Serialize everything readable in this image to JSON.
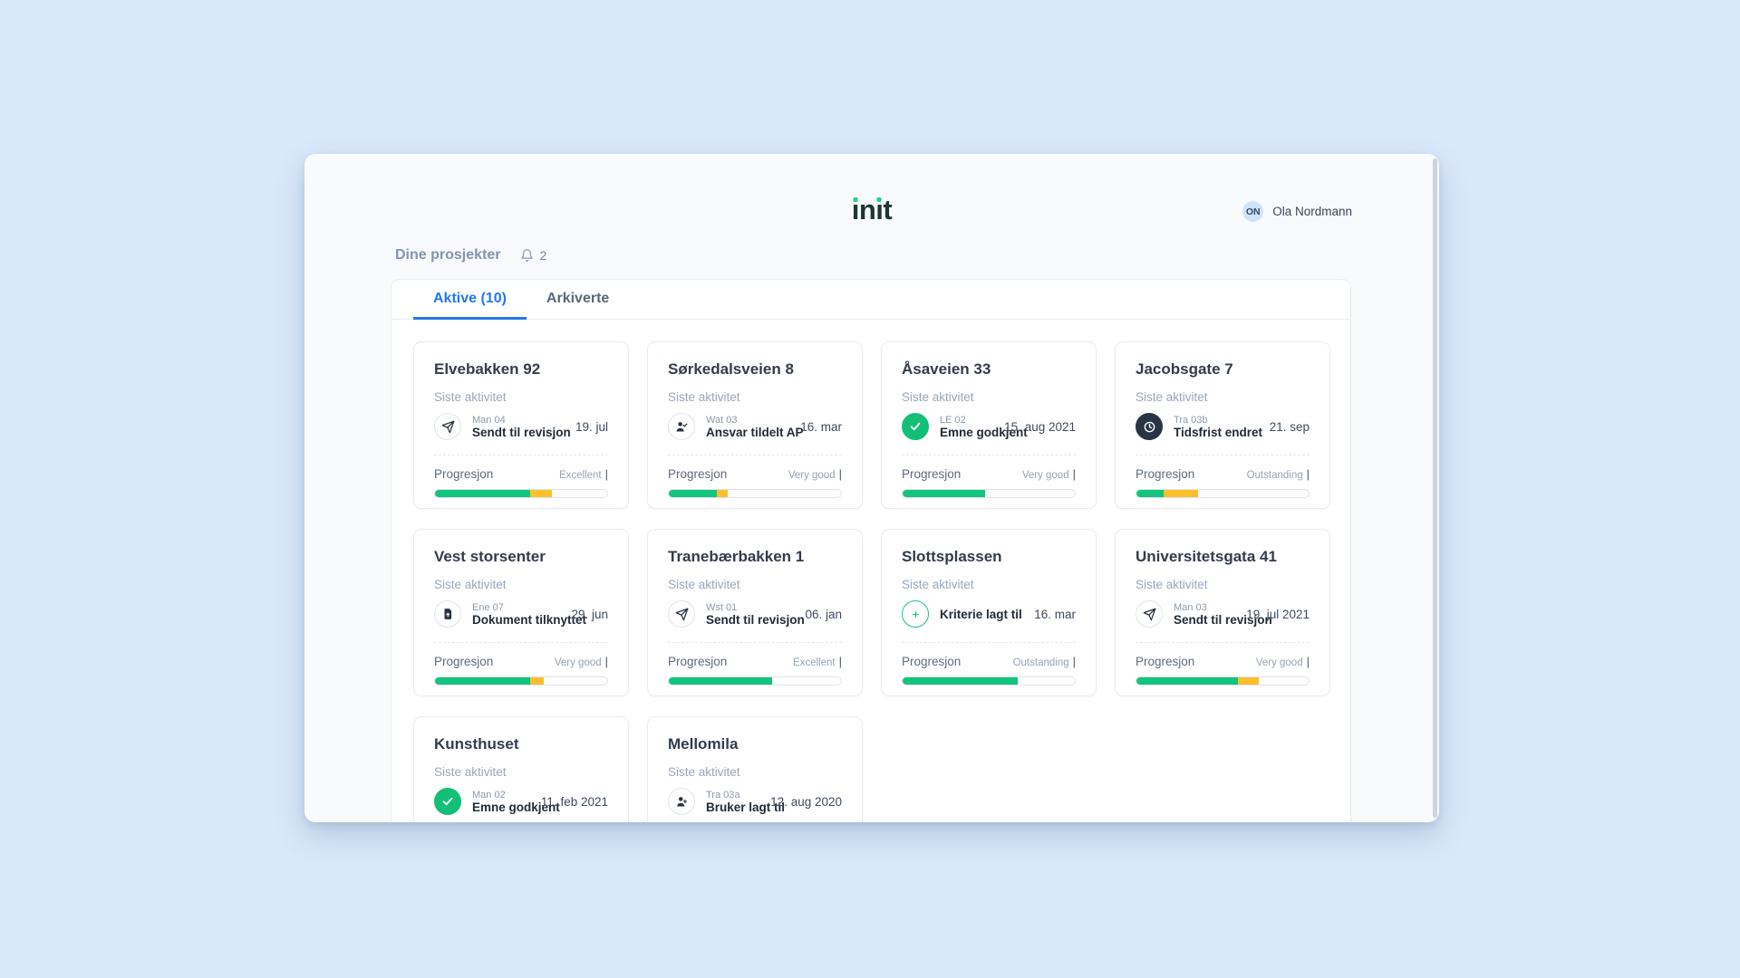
{
  "header": {
    "logo": "init",
    "user": {
      "initials": "ON",
      "name": "Ola Nordmann"
    }
  },
  "toolbar": {
    "title": "Dine prosjekter",
    "notifications_count": "2"
  },
  "tabs": [
    {
      "label": "Aktive (10)",
      "active": true
    },
    {
      "label": "Arkiverte",
      "active": false
    }
  ],
  "labels": {
    "last_activity": "Siste aktivitet",
    "progress": "Progresjon"
  },
  "colors": {
    "background": "#d9e8fa",
    "tab_active": "#2478e8",
    "progress_green": "#12c47e",
    "progress_yellow": "#fcc02c",
    "success_icon": "#13bf77",
    "logo_dot": "#27d08e"
  },
  "projects": [
    {
      "name": "Elvebakken 92",
      "code": "Man 04",
      "activity": "Sendt til revisjon",
      "icon": "send",
      "date": "19. jul",
      "rating": "Excellent",
      "progress_green_pct": 55,
      "progress_yellow_pct": 13,
      "truncated": false
    },
    {
      "name": "Sørkedalsveien 8",
      "code": "Wat 03",
      "activity": "Ansvar tildelt AP",
      "icon": "user-check",
      "date": "16. mar",
      "rating": "Very good",
      "progress_green_pct": 28,
      "progress_yellow_pct": 6,
      "truncated": false
    },
    {
      "name": "Åsaveien 33",
      "code": "LE 02",
      "activity": "Emne godkjent",
      "icon": "check",
      "date": "15. aug 2021",
      "rating": "Very good",
      "progress_green_pct": 48,
      "progress_yellow_pct": 0,
      "truncated": false
    },
    {
      "name": "Jacobsgate 7",
      "code": "Tra 03b",
      "activity": "Tidsfrist endret",
      "icon": "clock",
      "date": "21. sep",
      "rating": "Outstanding",
      "progress_green_pct": 16,
      "progress_yellow_pct": 20,
      "truncated": false
    },
    {
      "name": "Vest storsenter",
      "code": "Ene 07",
      "activity": "Dokument tilknyttet",
      "icon": "doc-upload",
      "date": "29. jun",
      "rating": "Very good",
      "progress_green_pct": 55,
      "progress_yellow_pct": 8,
      "truncated": false
    },
    {
      "name": "Tranebærbakken 1",
      "code": "Wst 01",
      "activity": "Sendt til revisjon",
      "icon": "send",
      "date": "06. jan",
      "rating": "Excellent",
      "progress_green_pct": 60,
      "progress_yellow_pct": 0,
      "truncated": false
    },
    {
      "name": "Slottsplassen",
      "code": "",
      "activity": "Kriterie lagt til",
      "icon": "plus-circle",
      "date": "16. mar",
      "rating": "Outstanding",
      "progress_green_pct": 67,
      "progress_yellow_pct": 0,
      "truncated": false
    },
    {
      "name": "Universitetsgata 41",
      "code": "Man 03",
      "activity": "Sendt til revisjon",
      "icon": "send",
      "date": "19. jul 2021",
      "rating": "Very good",
      "progress_green_pct": 59,
      "progress_yellow_pct": 12,
      "truncated": false
    },
    {
      "name": "Kunsthuset",
      "code": "Man 02",
      "activity": "Emne godkjent",
      "icon": "check",
      "date": "11. feb 2021",
      "rating": "",
      "progress_green_pct": 0,
      "progress_yellow_pct": 0,
      "truncated": true
    },
    {
      "name": "Mellomila",
      "code": "Tra 03a",
      "activity": "Bruker lagt til",
      "icon": "user-plus",
      "date": "12. aug 2020",
      "rating": "",
      "progress_green_pct": 0,
      "progress_yellow_pct": 0,
      "truncated": true
    }
  ]
}
